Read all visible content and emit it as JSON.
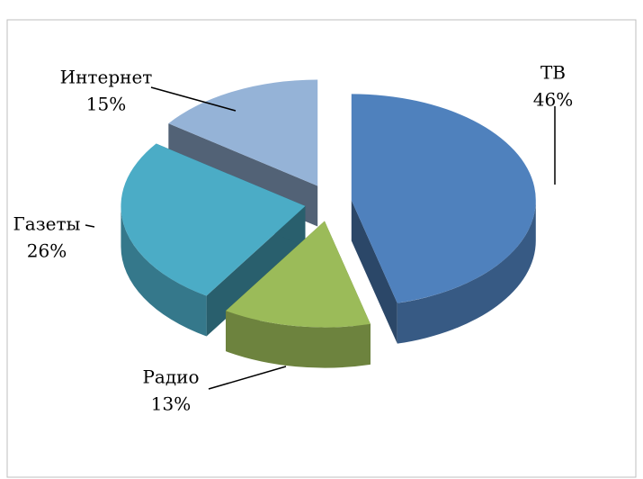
{
  "chart_data": {
    "type": "pie3d",
    "categories": [
      "ТВ",
      "Радио",
      "Газеты",
      "Интернет"
    ],
    "values": [
      46,
      13,
      26,
      15
    ],
    "value_labels": [
      "46%",
      "13%",
      "26%",
      "15%"
    ],
    "colors": [
      "#4f81bd",
      "#9bbb59",
      "#4bacc6",
      "#95b3d7"
    ]
  }
}
